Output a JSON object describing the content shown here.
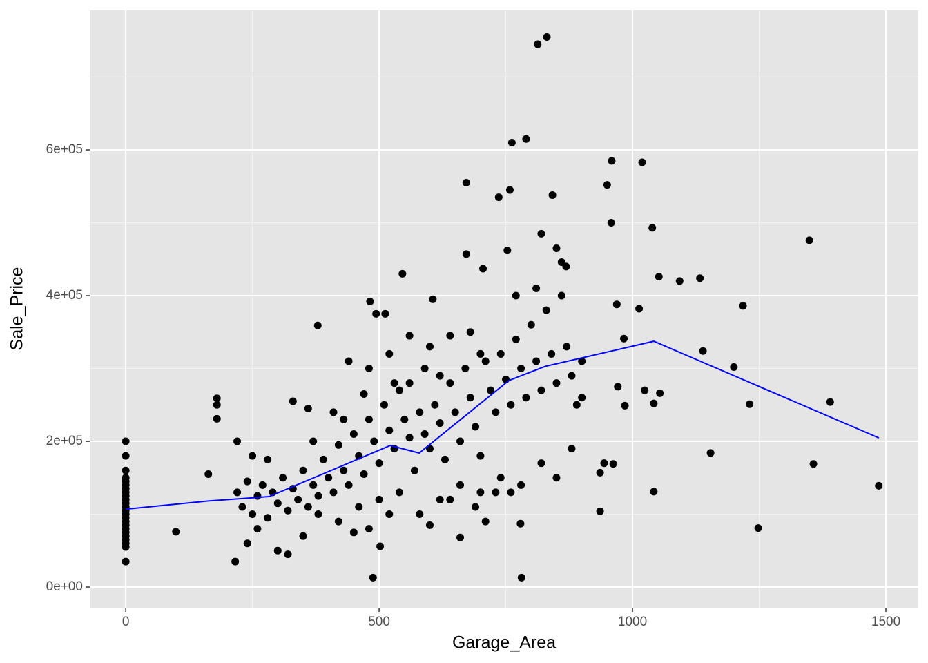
{
  "chart_data": {
    "type": "scatter",
    "x_label": "Garage_Area",
    "y_label": "Sale_Price",
    "xlim": [
      -71,
      1564
    ],
    "ylim": [
      -28400,
      791500
    ],
    "xticks": [
      0,
      500,
      1000,
      1500
    ],
    "yticks": [
      {
        "value": 0,
        "label": "0e+00"
      },
      {
        "value": 200000,
        "label": "2e+05"
      },
      {
        "value": 400000,
        "label": "4e+05"
      },
      {
        "value": 600000,
        "label": "6e+05"
      }
    ],
    "x_minor_grid": [
      250,
      750,
      1250
    ],
    "y_minor_grid": [
      100000,
      300000,
      500000,
      700000
    ],
    "grid": true,
    "points": {
      "color": "#000000",
      "x": [
        0,
        0,
        0,
        0,
        0,
        0,
        0,
        0,
        0,
        0,
        0,
        0,
        0,
        0,
        0,
        0,
        0,
        0,
        0,
        0,
        0,
        0,
        0,
        0,
        813,
        831,
        762,
        790,
        672,
        736,
        758,
        842,
        959,
        1019,
        950,
        958,
        1039,
        1349,
        1052,
        1093,
        1133,
        1139,
        1200,
        1218,
        1231,
        1390,
        1357,
        1486,
        1248,
        1154,
        1042,
        1054,
        1024,
        1042,
        985,
        971,
        983,
        1013,
        969,
        936,
        962,
        944,
        936,
        379,
        482,
        494,
        512,
        546,
        606,
        672,
        705,
        753,
        820,
        850,
        860,
        869,
        488,
        781,
        216,
        99,
        502,
        660,
        779,
        163,
        180,
        180,
        180,
        220,
        230,
        240,
        250,
        260,
        270,
        280,
        290,
        300,
        310,
        320,
        330,
        340,
        350,
        360,
        370,
        380,
        390,
        400,
        410,
        420,
        430,
        440,
        450,
        460,
        470,
        480,
        490,
        500,
        510,
        520,
        530,
        540,
        550,
        560,
        570,
        580,
        590,
        600,
        610,
        620,
        630,
        640,
        650,
        660,
        670,
        680,
        690,
        700,
        710,
        720,
        730,
        740,
        750,
        760,
        770,
        780,
        790,
        800,
        810,
        820,
        830,
        840,
        850,
        860,
        870,
        880,
        890,
        900,
        220,
        240,
        260,
        300,
        320,
        350,
        380,
        420,
        460,
        500,
        540,
        580,
        620,
        660,
        700,
        740,
        780,
        820,
        850,
        880,
        900,
        440,
        480,
        520,
        560,
        600,
        640,
        700,
        770,
        810,
        590,
        330,
        360,
        250,
        280,
        410,
        470,
        530,
        620,
        680,
        730,
        760,
        430,
        370,
        560,
        640,
        690,
        710,
        450,
        480,
        520,
        600
      ],
      "y": [
        200000,
        180000,
        160000,
        150000,
        145000,
        140000,
        135000,
        130000,
        125000,
        120000,
        115000,
        110000,
        105000,
        100000,
        95000,
        90000,
        85000,
        80000,
        75000,
        70000,
        65000,
        60000,
        55000,
        35000,
        745000,
        755000,
        610000,
        615000,
        555000,
        535000,
        545000,
        538000,
        585000,
        583000,
        552000,
        500000,
        493000,
        476000,
        426000,
        420000,
        424000,
        324000,
        302000,
        386000,
        251000,
        254000,
        169000,
        139000,
        81000,
        184000,
        131000,
        266000,
        270000,
        252000,
        249000,
        275000,
        341000,
        382000,
        388000,
        157000,
        169000,
        170000,
        104000,
        359000,
        392000,
        375000,
        375000,
        430000,
        395000,
        457000,
        437000,
        462000,
        485000,
        465000,
        446000,
        440000,
        13000,
        13000,
        35000,
        76000,
        56000,
        68000,
        87000,
        155000,
        259000,
        231000,
        250000,
        130000,
        110000,
        145000,
        100000,
        125000,
        140000,
        95000,
        130000,
        115000,
        150000,
        105000,
        135000,
        120000,
        160000,
        110000,
        140000,
        125000,
        175000,
        150000,
        130000,
        195000,
        160000,
        140000,
        210000,
        180000,
        155000,
        230000,
        200000,
        170000,
        250000,
        215000,
        190000,
        270000,
        230000,
        205000,
        160000,
        240000,
        210000,
        190000,
        250000,
        225000,
        175000,
        280000,
        240000,
        200000,
        300000,
        260000,
        220000,
        180000,
        310000,
        270000,
        240000,
        320000,
        285000,
        250000,
        340000,
        300000,
        260000,
        360000,
        310000,
        270000,
        380000,
        320000,
        280000,
        400000,
        330000,
        290000,
        250000,
        310000,
        200000,
        60000,
        80000,
        50000,
        45000,
        70000,
        100000,
        90000,
        110000,
        120000,
        130000,
        100000,
        120000,
        140000,
        130000,
        150000,
        140000,
        170000,
        150000,
        190000,
        260000,
        310000,
        300000,
        320000,
        345000,
        330000,
        345000,
        320000,
        400000,
        410000,
        300000,
        255000,
        245000,
        180000,
        175000,
        240000,
        265000,
        280000,
        290000,
        350000,
        130000,
        130000,
        230000,
        200000,
        280000,
        120000,
        110000,
        90000,
        75000,
        80000,
        100000,
        85000
      ]
    },
    "line": {
      "color": "#0000ff",
      "x": [
        0,
        161,
        283,
        522,
        579,
        756,
        828,
        1042,
        1486
      ],
      "y": [
        107000,
        118000,
        124200,
        194300,
        183900,
        283400,
        303000,
        337400,
        204700
      ]
    }
  }
}
